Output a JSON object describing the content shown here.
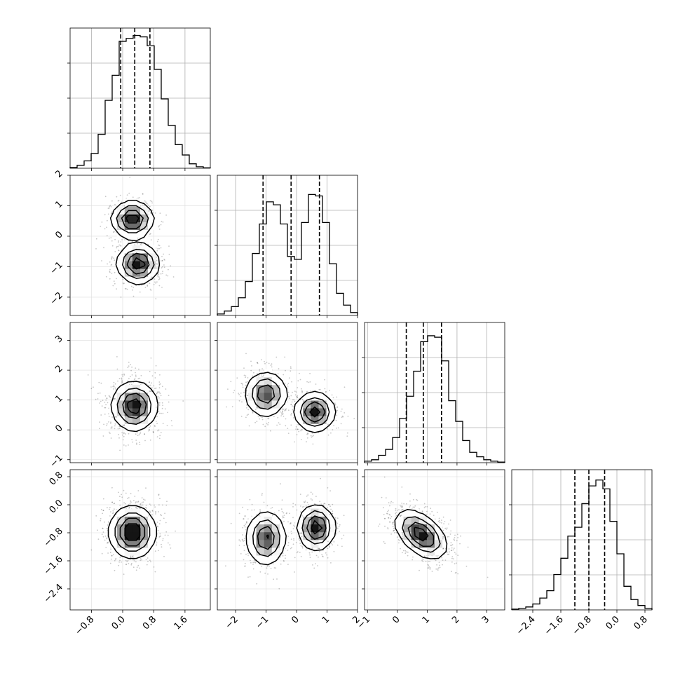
{
  "chart_data": {
    "type": "corner",
    "description_free": true,
    "grid": true,
    "quantile_lines": "dashed",
    "params": [
      {
        "range": [
          -1.35,
          2.25
        ],
        "ticks": [
          -0.8,
          0.0,
          0.8,
          1.6
        ],
        "tick_labels": [
          "−0.8",
          "0.0",
          "0.8",
          "1.6"
        ],
        "quantiles": [
          -0.05,
          0.31,
          0.7
        ],
        "hist": [
          0.005,
          0.02,
          0.05,
          0.1,
          0.23,
          0.46,
          0.63,
          0.86,
          0.88,
          0.9,
          0.89,
          0.83,
          0.67,
          0.47,
          0.29,
          0.16,
          0.09,
          0.03,
          0.01,
          0.003
        ]
      },
      {
        "range": [
          -2.6,
          2.0
        ],
        "ticks": [
          -2,
          -1,
          0,
          1,
          2
        ],
        "tick_labels": [
          "−2",
          "−1",
          "0",
          "1",
          "2"
        ],
        "quantiles": [
          -1.1,
          -0.18,
          0.75
        ],
        "hist": [
          0.01,
          0.03,
          0.06,
          0.12,
          0.23,
          0.42,
          0.62,
          0.77,
          0.75,
          0.62,
          0.4,
          0.38,
          0.63,
          0.82,
          0.81,
          0.63,
          0.35,
          0.15,
          0.07,
          0.02
        ]
      },
      {
        "range": [
          -1.1,
          3.6
        ],
        "ticks": [
          -1,
          0,
          1,
          2,
          3
        ],
        "tick_labels": [
          "−1",
          "0",
          "1",
          "2",
          "3"
        ],
        "quantiles": [
          0.3,
          0.87,
          1.48
        ],
        "hist": [
          0.01,
          0.02,
          0.05,
          0.09,
          0.17,
          0.3,
          0.45,
          0.62,
          0.82,
          0.86,
          0.85,
          0.69,
          0.42,
          0.28,
          0.15,
          0.07,
          0.04,
          0.02,
          0.01,
          0.004
        ]
      },
      {
        "range": [
          -3.0,
          1.0
        ],
        "ticks": [
          -2.4,
          -1.6,
          -0.8,
          0.0,
          0.8
        ],
        "tick_labels": [
          "−2.4",
          "−1.6",
          "−0.8",
          "0.0",
          "0.8"
        ],
        "quantiles": [
          -1.2,
          -0.8,
          -0.35
        ],
        "hist": [
          0.005,
          0.01,
          0.02,
          0.04,
          0.08,
          0.13,
          0.24,
          0.35,
          0.5,
          0.56,
          0.72,
          0.84,
          0.88,
          0.82,
          0.6,
          0.38,
          0.16,
          0.07,
          0.03,
          0.01
        ]
      }
    ],
    "hist_ylim": [
      0,
      0.95
    ],
    "pair_modes": [
      {
        "row": 1,
        "col": 0,
        "modes": [
          {
            "mx": 0.25,
            "my": 0.55,
            "sx": 0.25,
            "sy": 0.28,
            "w": 1
          },
          {
            "mx": 0.4,
            "my": -0.9,
            "sx": 0.25,
            "sy": 0.3,
            "w": 1
          }
        ]
      },
      {
        "row": 2,
        "col": 0,
        "modes": [
          {
            "mx": 0.3,
            "my": 0.8,
            "sx": 0.27,
            "sy": 0.38,
            "w": 1
          }
        ]
      },
      {
        "row": 2,
        "col": 1,
        "modes": [
          {
            "mx": -1.0,
            "my": 1.2,
            "sx": 0.32,
            "sy": 0.35,
            "w": 1
          },
          {
            "mx": 0.6,
            "my": 0.6,
            "sx": 0.3,
            "sy": 0.3,
            "w": 1.2
          }
        ]
      },
      {
        "row": 3,
        "col": 0,
        "modes": [
          {
            "mx": 0.25,
            "my": -0.78,
            "sx": 0.27,
            "sy": 0.34,
            "w": 1
          }
        ]
      },
      {
        "row": 3,
        "col": 1,
        "modes": [
          {
            "mx": -1.0,
            "my": -0.95,
            "sx": 0.3,
            "sy": 0.36,
            "w": 1
          },
          {
            "mx": 0.65,
            "my": -0.65,
            "sx": 0.28,
            "sy": 0.3,
            "w": 1.2
          }
        ]
      },
      {
        "row": 3,
        "col": 2,
        "modes": [
          {
            "mx": 0.8,
            "my": -0.85,
            "sx": 0.4,
            "sy": 0.32,
            "w": 1,
            "rho": -0.5
          }
        ]
      }
    ]
  }
}
